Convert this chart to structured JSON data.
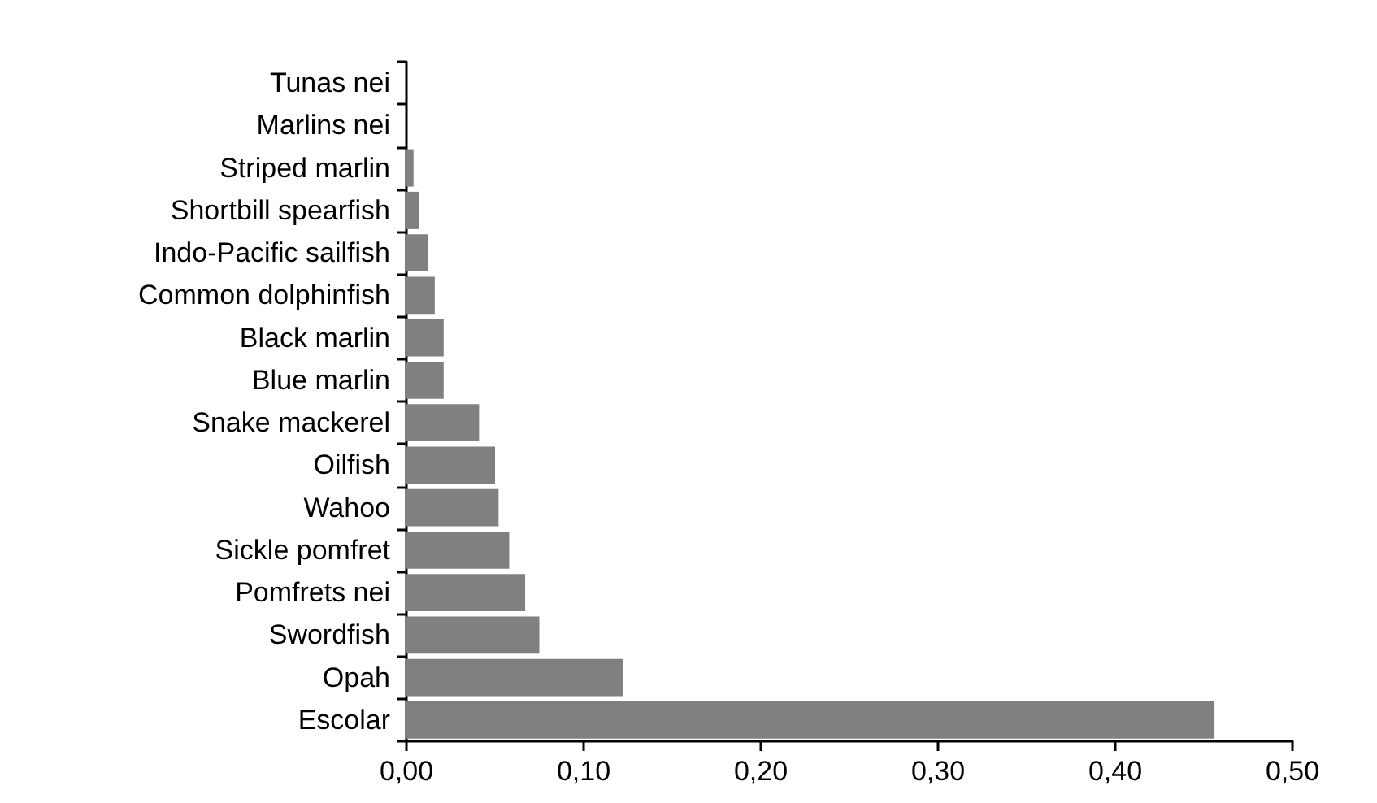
{
  "chart_data": {
    "type": "bar",
    "orientation": "horizontal",
    "categories": [
      "Tunas nei",
      "Marlins nei",
      "Striped marlin",
      "Shortbill spearfish",
      "Indo-Pacific sailfish",
      "Common dolphinfish",
      "Black marlin",
      "Blue marlin",
      "Snake mackerel",
      "Oilfish",
      "Wahoo",
      "Sickle pomfret",
      "Pomfrets nei",
      "Swordfish",
      "Opah",
      "Escolar"
    ],
    "values": [
      0,
      0,
      0.004,
      0.007,
      0.012,
      0.016,
      0.021,
      0.021,
      0.041,
      0.05,
      0.052,
      0.058,
      0.067,
      0.075,
      0.122,
      0.456
    ],
    "color": "#808080",
    "xlim": [
      0,
      0.5
    ],
    "xticks": [
      {
        "value": 0,
        "label": "0,00"
      },
      {
        "value": 0.1,
        "label": "0,10"
      },
      {
        "value": 0.2,
        "label": "0,20"
      },
      {
        "value": 0.3,
        "label": "0,30"
      },
      {
        "value": 0.4,
        "label": "0,40"
      },
      {
        "value": 0.5,
        "label": "0,50"
      }
    ],
    "grid": false
  }
}
